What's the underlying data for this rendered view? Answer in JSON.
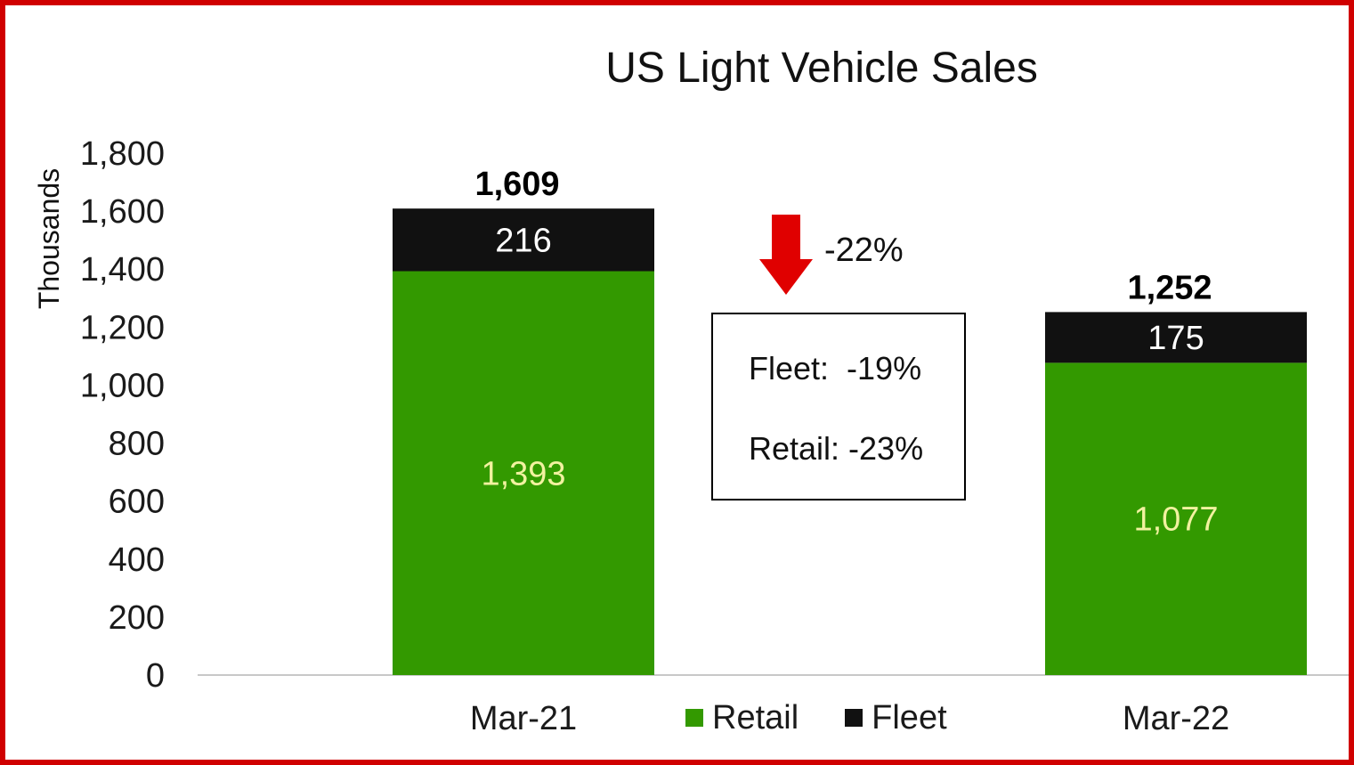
{
  "chart_data": {
    "type": "bar",
    "stacked": true,
    "title": "US Light Vehicle Sales",
    "ylabel": "Thousands",
    "xlabel": "",
    "ylim": [
      0,
      1800
    ],
    "yticks": [
      "0",
      "200",
      "400",
      "600",
      "800",
      "1,000",
      "1,200",
      "1,400",
      "1,600",
      "1,800"
    ],
    "ytick_values": [
      0,
      200,
      400,
      600,
      800,
      1000,
      1200,
      1400,
      1600,
      1800
    ],
    "categories": [
      "Mar-21",
      "Mar-22"
    ],
    "series": [
      {
        "name": "Retail",
        "values": [
          1393,
          1077
        ],
        "labels": [
          "1,393",
          "1,077"
        ],
        "color": "#339900",
        "label_color": "#f2f2a0"
      },
      {
        "name": "Fleet",
        "values": [
          216,
          175
        ],
        "labels": [
          "216",
          "175"
        ],
        "color": "#111111",
        "label_color": "#ffffff"
      }
    ],
    "totals": [
      1609,
      1252
    ],
    "total_labels": [
      "1,609",
      "1,252"
    ],
    "legend_position": "bottom-center",
    "grid": false
  },
  "annotations": {
    "change_arrow": {
      "icon": "down-arrow-icon",
      "color": "#e00000",
      "text": "-22%"
    },
    "info_box": {
      "fleet": "Fleet:  -19%",
      "retail": "Retail: -23%"
    }
  },
  "colors": {
    "frame": "#d00000",
    "retail": "#339900",
    "fleet": "#111111"
  }
}
